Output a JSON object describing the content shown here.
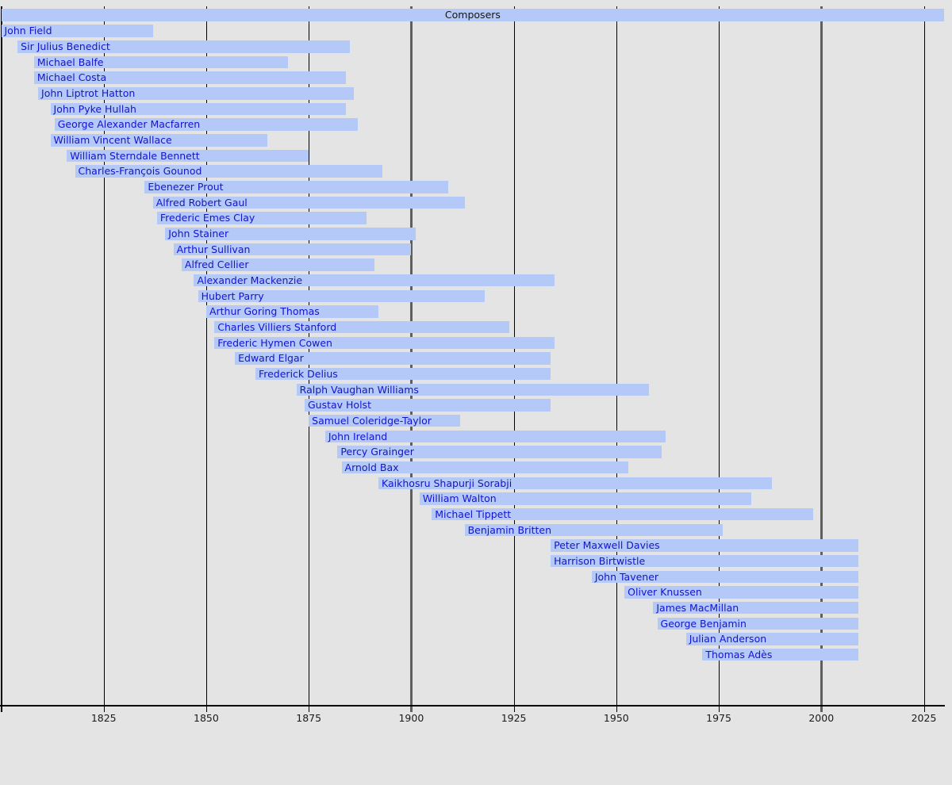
{
  "chart_data": {
    "type": "bar",
    "subtype": "timeline-lifespans",
    "title": "Composers",
    "xlabel": "",
    "ylabel": "",
    "x_axis": {
      "start": 1800,
      "end": 2030,
      "tick_interval": 25,
      "ticks": [
        1825,
        1850,
        1875,
        1900,
        1925,
        1950,
        1975,
        2000,
        2025
      ],
      "major_gridline_years": [
        1900,
        2000
      ],
      "gridlines_behind_bars": true
    },
    "living_bar_end_year": 2009,
    "composers": [
      {
        "name": "John Field",
        "start": 1800,
        "end": 1837,
        "clipped_start": true
      },
      {
        "name": "Sir Julius Benedict",
        "start": 1804,
        "end": 1885
      },
      {
        "name": "Michael Balfe",
        "start": 1808,
        "end": 1870
      },
      {
        "name": "Michael Costa",
        "start": 1808,
        "end": 1884
      },
      {
        "name": "John Liptrot Hatton",
        "start": 1809,
        "end": 1886
      },
      {
        "name": "John Pyke Hullah",
        "start": 1812,
        "end": 1884
      },
      {
        "name": "George Alexander Macfarren",
        "start": 1813,
        "end": 1887
      },
      {
        "name": "William Vincent Wallace",
        "start": 1812,
        "end": 1865
      },
      {
        "name": "William Sterndale Bennett",
        "start": 1816,
        "end": 1875
      },
      {
        "name": "Charles-François Gounod",
        "start": 1818,
        "end": 1893
      },
      {
        "name": "Ebenezer Prout",
        "start": 1835,
        "end": 1909
      },
      {
        "name": "Alfred Robert Gaul",
        "start": 1837,
        "end": 1913
      },
      {
        "name": "Frederic Emes Clay",
        "start": 1838,
        "end": 1889
      },
      {
        "name": "John Stainer",
        "start": 1840,
        "end": 1901
      },
      {
        "name": "Arthur Sullivan",
        "start": 1842,
        "end": 1900
      },
      {
        "name": "Alfred Cellier",
        "start": 1844,
        "end": 1891
      },
      {
        "name": "Alexander Mackenzie",
        "start": 1847,
        "end": 1935
      },
      {
        "name": "Hubert Parry",
        "start": 1848,
        "end": 1918
      },
      {
        "name": "Arthur Goring Thomas",
        "start": 1850,
        "end": 1892
      },
      {
        "name": "Charles Villiers Stanford",
        "start": 1852,
        "end": 1924
      },
      {
        "name": "Frederic Hymen Cowen",
        "start": 1852,
        "end": 1935
      },
      {
        "name": "Edward Elgar",
        "start": 1857,
        "end": 1934
      },
      {
        "name": "Frederick Delius",
        "start": 1862,
        "end": 1934
      },
      {
        "name": "Ralph Vaughan Williams",
        "start": 1872,
        "end": 1958
      },
      {
        "name": "Gustav Holst",
        "start": 1874,
        "end": 1934
      },
      {
        "name": "Samuel Coleridge-Taylor",
        "start": 1875,
        "end": 1912
      },
      {
        "name": "John Ireland",
        "start": 1879,
        "end": 1962
      },
      {
        "name": "Percy Grainger",
        "start": 1882,
        "end": 1961
      },
      {
        "name": "Arnold Bax",
        "start": 1883,
        "end": 1953
      },
      {
        "name": "Kaikhosru Shapurji Sorabji",
        "start": 1892,
        "end": 1988
      },
      {
        "name": "William Walton",
        "start": 1902,
        "end": 1983
      },
      {
        "name": "Michael Tippett",
        "start": 1905,
        "end": 1998
      },
      {
        "name": "Benjamin Britten",
        "start": 1913,
        "end": 1976
      },
      {
        "name": "Peter Maxwell Davies",
        "start": 1934,
        "end": 2009
      },
      {
        "name": "Harrison Birtwistle",
        "start": 1934,
        "end": 2009
      },
      {
        "name": "John Tavener",
        "start": 1944,
        "end": 2009
      },
      {
        "name": "Oliver Knussen",
        "start": 1952,
        "end": 2009
      },
      {
        "name": "James MacMillan",
        "start": 1959,
        "end": 2009
      },
      {
        "name": "George Benjamin",
        "start": 1960,
        "end": 2009
      },
      {
        "name": "Julian Anderson",
        "start": 1967,
        "end": 2009
      },
      {
        "name": "Thomas Adès",
        "start": 1971,
        "end": 2009
      }
    ],
    "colors": {
      "background": "#e4e4e4",
      "bar_fill": "#b4c9f7",
      "bar_label_text": "#1414cc",
      "title_text": "#151515",
      "gridline_minor": "#000000",
      "gridline_major": "#5f5f5f",
      "axis_line": "#000000",
      "tick_label_text": "#1a1a1a"
    }
  }
}
